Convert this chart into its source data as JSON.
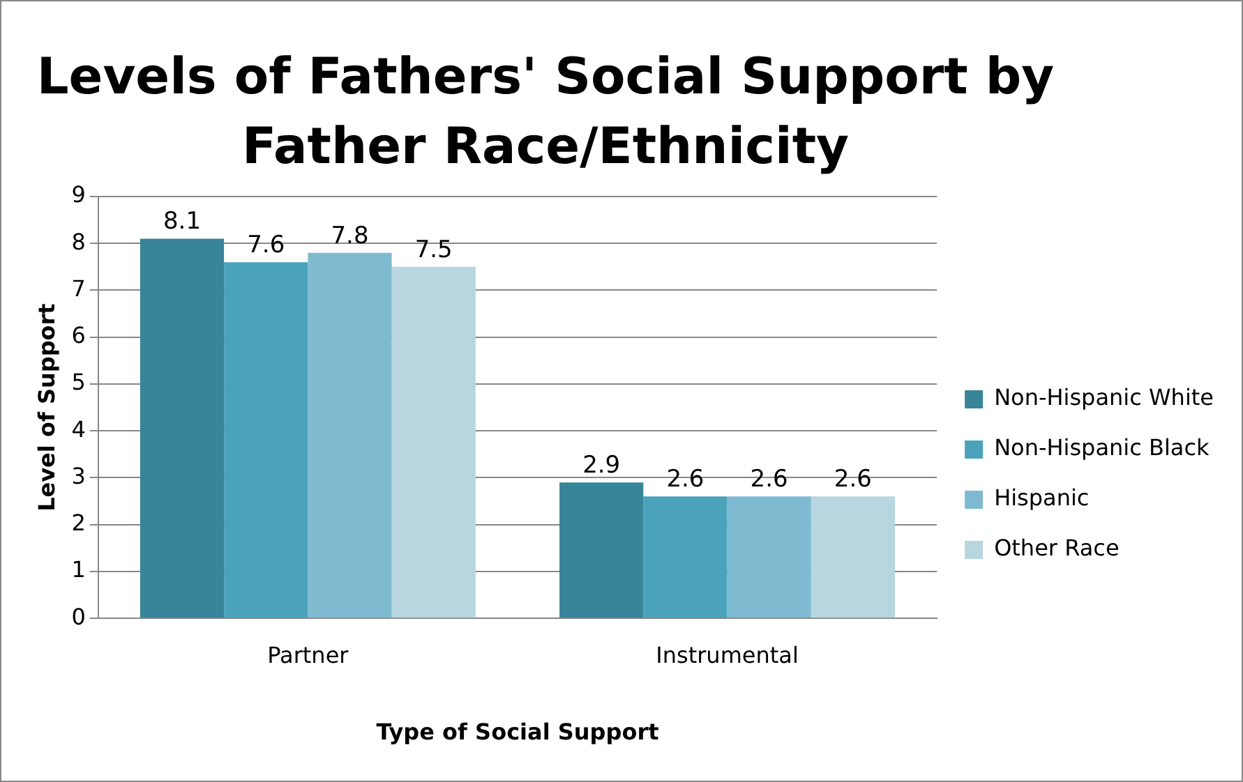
{
  "chart_data": {
    "type": "bar",
    "title": "Levels of Fathers' Social Support by Father Race/Ethnicity",
    "xlabel": "Type of Social Support",
    "ylabel": "Level of Support",
    "categories": [
      "Partner",
      "Instrumental"
    ],
    "series": [
      {
        "name": "Non-Hispanic White",
        "color": "#388498",
        "values": [
          8.1,
          2.9
        ]
      },
      {
        "name": "Non-Hispanic Black",
        "color": "#4aa3ba",
        "values": [
          7.6,
          2.6
        ]
      },
      {
        "name": "Hispanic",
        "color": "#7fbbd0",
        "values": [
          7.8,
          2.6
        ]
      },
      {
        "name": "Other Race",
        "color": "#b7d6e0",
        "values": [
          7.5,
          2.6
        ]
      }
    ],
    "ylim": [
      0,
      9
    ],
    "yticks": [
      0,
      1,
      2,
      3,
      4,
      5,
      6,
      7,
      8,
      9
    ],
    "grid": "y",
    "legend": "right",
    "data_labels": true
  }
}
